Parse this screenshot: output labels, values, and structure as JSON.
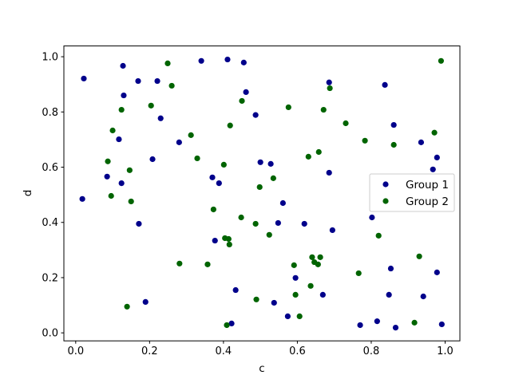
{
  "chart_data": {
    "type": "scatter",
    "title": "",
    "xlabel": "c",
    "ylabel": "d",
    "xlim": [
      -0.032,
      1.04
    ],
    "ylim": [
      -0.029,
      1.039
    ],
    "xticks": [
      0.0,
      0.2,
      0.4,
      0.6,
      0.8,
      1.0
    ],
    "yticks": [
      0.0,
      0.2,
      0.4,
      0.6,
      0.8,
      1.0
    ],
    "xtick_labels": [
      "0.0",
      "0.2",
      "0.4",
      "0.6",
      "0.8",
      "1.0"
    ],
    "ytick_labels": [
      "0.0",
      "0.2",
      "0.4",
      "0.6",
      "0.8",
      "1.0"
    ],
    "grid": false,
    "legend_placement": "center-right",
    "series": [
      {
        "name": "Group 1",
        "color": "#00008b",
        "points": [
          [
            0.022,
            0.921
          ],
          [
            0.128,
            0.967
          ],
          [
            0.169,
            0.912
          ],
          [
            0.221,
            0.912
          ],
          [
            0.13,
            0.86
          ],
          [
            0.23,
            0.777
          ],
          [
            0.117,
            0.701
          ],
          [
            0.28,
            0.69
          ],
          [
            0.208,
            0.629
          ],
          [
            0.085,
            0.566
          ],
          [
            0.124,
            0.542
          ],
          [
            0.37,
            0.563
          ],
          [
            0.388,
            0.542
          ],
          [
            0.34,
            0.985
          ],
          [
            0.411,
            0.99
          ],
          [
            0.455,
            0.979
          ],
          [
            0.461,
            0.872
          ],
          [
            0.487,
            0.789
          ],
          [
            0.5,
            0.618
          ],
          [
            0.018,
            0.485
          ],
          [
            0.686,
            0.907
          ],
          [
            0.837,
            0.898
          ],
          [
            0.861,
            0.753
          ],
          [
            0.935,
            0.69
          ],
          [
            0.978,
            0.635
          ],
          [
            0.967,
            0.592
          ],
          [
            0.528,
            0.612
          ],
          [
            0.686,
            0.58
          ],
          [
            0.171,
            0.395
          ],
          [
            0.377,
            0.334
          ],
          [
            0.433,
            0.155
          ],
          [
            0.189,
            0.112
          ],
          [
            0.422,
            0.034
          ],
          [
            0.561,
            0.47
          ],
          [
            0.548,
            0.398
          ],
          [
            0.619,
            0.395
          ],
          [
            0.695,
            0.372
          ],
          [
            0.802,
            0.418
          ],
          [
            0.595,
            0.199
          ],
          [
            0.669,
            0.138
          ],
          [
            0.537,
            0.109
          ],
          [
            0.574,
            0.06
          ],
          [
            0.853,
            0.233
          ],
          [
            0.978,
            0.219
          ],
          [
            0.848,
            0.138
          ],
          [
            0.941,
            0.132
          ],
          [
            0.77,
            0.028
          ],
          [
            0.816,
            0.042
          ],
          [
            0.866,
            0.019
          ],
          [
            0.991,
            0.031
          ]
        ]
      },
      {
        "name": "Group 2",
        "color": "#006400",
        "points": [
          [
            0.249,
            0.976
          ],
          [
            0.26,
            0.895
          ],
          [
            0.124,
            0.808
          ],
          [
            0.204,
            0.823
          ],
          [
            0.1,
            0.733
          ],
          [
            0.312,
            0.716
          ],
          [
            0.087,
            0.621
          ],
          [
            0.146,
            0.589
          ],
          [
            0.329,
            0.632
          ],
          [
            0.45,
            0.84
          ],
          [
            0.418,
            0.751
          ],
          [
            0.401,
            0.609
          ],
          [
            0.498,
            0.528
          ],
          [
            0.096,
            0.496
          ],
          [
            0.15,
            0.476
          ],
          [
            0.989,
            0.985
          ],
          [
            0.688,
            0.886
          ],
          [
            0.576,
            0.817
          ],
          [
            0.671,
            0.808
          ],
          [
            0.731,
            0.759
          ],
          [
            0.783,
            0.696
          ],
          [
            0.861,
            0.681
          ],
          [
            0.971,
            0.725
          ],
          [
            0.63,
            0.638
          ],
          [
            0.658,
            0.655
          ],
          [
            0.535,
            0.56
          ],
          [
            0.373,
            0.447
          ],
          [
            0.448,
            0.418
          ],
          [
            0.487,
            0.395
          ],
          [
            0.404,
            0.343
          ],
          [
            0.414,
            0.34
          ],
          [
            0.416,
            0.32
          ],
          [
            0.281,
            0.251
          ],
          [
            0.357,
            0.248
          ],
          [
            0.489,
            0.121
          ],
          [
            0.139,
            0.095
          ],
          [
            0.409,
            0.028
          ],
          [
            0.524,
            0.355
          ],
          [
            0.82,
            0.352
          ],
          [
            0.64,
            0.274
          ],
          [
            0.662,
            0.274
          ],
          [
            0.646,
            0.256
          ],
          [
            0.656,
            0.248
          ],
          [
            0.591,
            0.245
          ],
          [
            0.93,
            0.277
          ],
          [
            0.766,
            0.216
          ],
          [
            0.636,
            0.17
          ],
          [
            0.595,
            0.138
          ],
          [
            0.606,
            0.06
          ],
          [
            0.917,
            0.037
          ]
        ]
      }
    ]
  }
}
